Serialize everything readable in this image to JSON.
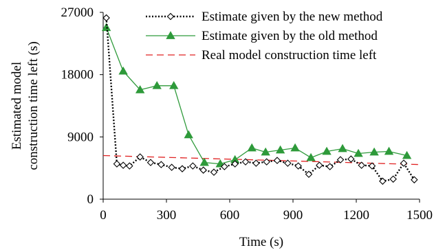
{
  "chart_data": {
    "type": "line",
    "xlabel": "Time (s)",
    "ylabel_lines": [
      "Estimated model",
      "construction time left (s)"
    ],
    "xlim": [
      0,
      1500
    ],
    "ylim": [
      0,
      27000
    ],
    "x_ticks": [
      0,
      300,
      600,
      900,
      1200,
      1500
    ],
    "y_ticks": [
      0,
      9000,
      18000,
      27000
    ],
    "x_tick_labels": [
      "0",
      "300",
      "600",
      "900",
      "1200",
      "1500"
    ],
    "y_tick_labels": [
      "0",
      "9000",
      "18000",
      "27000"
    ],
    "grid": false,
    "legend_position": "top-right",
    "series": [
      {
        "name": "Estimate given by the new method",
        "style": "dotted",
        "marker": "diamond",
        "color": "#000000",
        "x": [
          15,
          65,
          95,
          125,
          175,
          225,
          275,
          325,
          375,
          425,
          475,
          525,
          575,
          625,
          675,
          725,
          775,
          825,
          875,
          925,
          975,
          1025,
          1075,
          1125,
          1175,
          1225,
          1275,
          1325,
          1375,
          1425,
          1475
        ],
        "y": [
          26200,
          5100,
          4900,
          4800,
          6100,
          5300,
          5000,
          4600,
          4400,
          4800,
          4200,
          3900,
          4700,
          5100,
          5400,
          5200,
          5400,
          5600,
          5200,
          4800,
          3600,
          4900,
          4700,
          5700,
          5800,
          4900,
          4800,
          2600,
          2900,
          5200,
          2800
        ]
      },
      {
        "name": "Estimate given by the old method",
        "style": "solid",
        "marker": "triangle",
        "color": "#2e9a3a",
        "x": [
          15,
          95,
          175,
          255,
          335,
          405,
          480,
          555,
          625,
          705,
          770,
          840,
          910,
          985,
          1060,
          1135,
          1210,
          1285,
          1355,
          1440
        ],
        "y": [
          24800,
          18500,
          15800,
          16400,
          16400,
          9300,
          5300,
          5100,
          5700,
          7400,
          6800,
          7100,
          7400,
          6000,
          6900,
          7300,
          6600,
          6800,
          6900,
          6300
        ]
      },
      {
        "name": "Real model construction time left",
        "style": "dashed",
        "marker": "none",
        "color": "#e02020",
        "x": [
          0,
          1500
        ],
        "y": [
          6300,
          5000
        ]
      }
    ]
  }
}
